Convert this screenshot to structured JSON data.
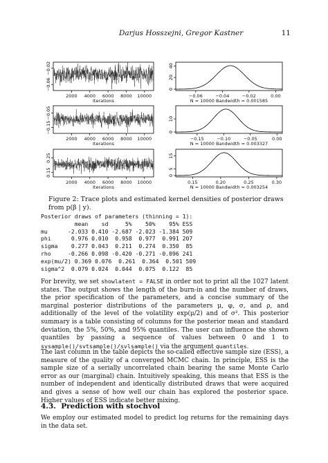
{
  "header": {
    "authors": "Darjus Hosszejni, Gregor Kastner",
    "page_number": "11"
  },
  "figure": {
    "trace_xticks": [
      "2000",
      "4000",
      "6000",
      "8000",
      "10000"
    ],
    "trace_xlabel": "Iterations",
    "rows": [
      {
        "trace_yticks": [
          "−0.06",
          "−0.02"
        ],
        "trace_ylim": [
          -0.075,
          -0.005
        ],
        "trace_center": -0.035,
        "trace_spread": 0.0105,
        "density_xticks": [
          "−0.06",
          "−0.04",
          "−0.02",
          "0.00"
        ],
        "density_xvals": [
          -0.06,
          -0.04,
          -0.02,
          0.0
        ],
        "density_xlim": [
          -0.075,
          0.005
        ],
        "density_yticks": [
          "0",
          "20",
          "40"
        ],
        "density_yvals": [
          0,
          20,
          40
        ],
        "density_ymax": 44,
        "density_mean": -0.034,
        "density_sd": 0.0105,
        "density_label": "N = 10000   Bandwidth = 0.001585"
      },
      {
        "trace_yticks": [
          "−0.15",
          "−0.05"
        ],
        "trace_ylim": [
          -0.19,
          0.0
        ],
        "trace_center": -0.095,
        "trace_spread": 0.022,
        "density_xticks": [
          "−0.15",
          "−0.10",
          "−0.05",
          "0.00"
        ],
        "density_xvals": [
          -0.15,
          -0.1,
          -0.05,
          0.0
        ],
        "density_xlim": [
          -0.19,
          0.01
        ],
        "density_yticks": [
          "0",
          "10"
        ],
        "density_yvals": [
          0,
          10
        ],
        "density_ymax": 19,
        "density_mean": -0.096,
        "density_sd": 0.023,
        "density_label": "N = 10000   Bandwidth = 0.003327"
      },
      {
        "trace_yticks": [
          "0.15",
          "0.25"
        ],
        "trace_ylim": [
          0.12,
          0.31
        ],
        "trace_center": 0.205,
        "trace_spread": 0.022,
        "density_xticks": [
          "0.15",
          "0.20",
          "0.25",
          "0.30"
        ],
        "density_xvals": [
          0.15,
          0.2,
          0.25,
          0.3
        ],
        "density_xlim": [
          0.12,
          0.31
        ],
        "density_yticks": [
          "0",
          "5",
          "15"
        ],
        "density_yvals": [
          0,
          5,
          15
        ],
        "density_ymax": 19,
        "density_mean": 0.206,
        "density_sd": 0.022,
        "density_label": "N = 10000   Bandwidth = 0.003254"
      }
    ],
    "caption": "Figure 2: Trace plots and estimated kernel densities of posterior draws from p(β | y)."
  },
  "output_block": "Posterior draws of parameters (thinning = 1):\n          mean    sd     5%    50%    95% ESS\nmu      -2.033 0.410 -2.687 -2.023 -1.384 509\nphi      0.976 0.010  0.958  0.977  0.991 207\nsigma    0.277 0.043  0.211  0.274  0.350  85\nrho     -0.266 0.098 -0.420 -0.271 -0.096 241\nexp(mu/2) 0.369 0.076  0.261  0.364  0.501 509\nsigma^2  0.079 0.024  0.044  0.075  0.122  85",
  "para1": {
    "t1": "For brevity, we set ",
    "c1": "showlatent = FALSE",
    "t2": " in order not to print all the 1027 latent states. The output shows the length of the burn-in and the number of draws, the prior specification of the parameters, and a concise summary of the marginal posterior distributions of the parameters μ, φ, σ, and ρ, and additionally of the level of the volatility exp(μ/2) and of σ². This posterior summary is a table consisting of columns for the posterior mean and standard deviation, the 5%, 50%, and 95% quantiles. The user can influence the shown quantiles by passing a sequence of values between 0 and 1 to ",
    "c2": "svsample()/svtsample()/svlsample()",
    "t3": " via the argument ",
    "c3": "quantiles",
    "t4": "."
  },
  "para2": "The last column in the table depicts the so-called effective sample size (ESS), a measure of the quality of a converged MCMC chain. In principle, ESS is the sample size of a serially uncorrelated chain bearing the same Monte Carlo error as our (marginal) chain. Intuitively speaking, this means that ESS is the number of independent and identically distributed draws that were acquired and gives a sense of how well our chain has explored the posterior space. Higher values of ESS indicate better mixing.",
  "section": {
    "number": "4.3.",
    "title": "Prediction with stochvol"
  },
  "para3": "We employ our estimated model to predict log returns for the remaining days in the data set."
}
